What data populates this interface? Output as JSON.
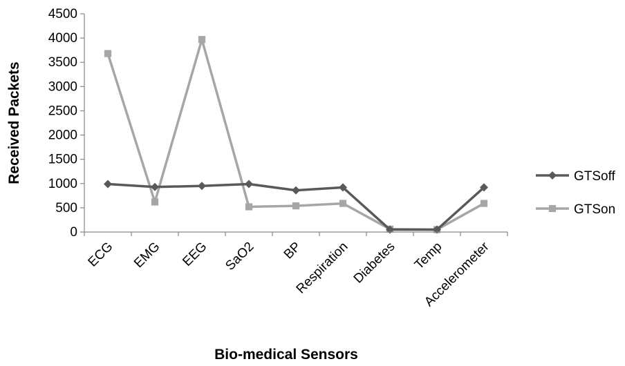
{
  "chart_data": {
    "type": "line",
    "categories": [
      "ECG",
      "EMG",
      "EEG",
      "SaO2",
      "BP",
      "Respiration",
      "Diabetes",
      "Temp",
      "Accelerometer"
    ],
    "series": [
      {
        "name": "GTSoff",
        "values": [
          990,
          930,
          950,
          990,
          860,
          920,
          50,
          50,
          920
        ],
        "color": "#595959",
        "marker": "diamond"
      },
      {
        "name": "GTSon",
        "values": [
          3680,
          620,
          3970,
          520,
          540,
          590,
          60,
          50,
          590
        ],
        "color": "#a6a6a6",
        "marker": "square"
      }
    ],
    "xlabel": "Bio-medical Sensors",
    "ylabel": "Received Packets",
    "ylim": [
      0,
      4500
    ],
    "yticks": [
      0,
      500,
      1000,
      1500,
      2000,
      2500,
      3000,
      3500,
      4000,
      4500
    ],
    "grid": false,
    "legend": "right"
  }
}
